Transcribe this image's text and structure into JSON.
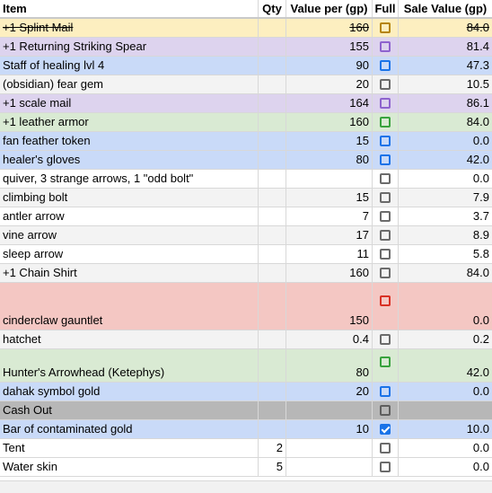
{
  "headers": {
    "item": "Item",
    "qty": "Qty",
    "value": "Value per (gp)",
    "full": "Full",
    "sale": "Sale Value (gp)"
  },
  "rows": [
    {
      "item": "+1 Splint Mail",
      "qty": "",
      "value": "160",
      "sale": "84.0",
      "bg": "#fdefc0",
      "cb": "#b58407",
      "checked": false,
      "strike": true
    },
    {
      "item": "+1 Returning Striking Spear",
      "qty": "",
      "value": "155",
      "sale": "81.4",
      "bg": "#ddd3ee",
      "cb": "#8e63ce",
      "checked": false
    },
    {
      "item": "Staff of healing lvl 4",
      "qty": "",
      "value": "90",
      "sale": "47.3",
      "bg": "#c9daf8",
      "cb": "#1a73e8",
      "checked": false
    },
    {
      "item": "(obsidian) fear gem",
      "qty": "",
      "value": "20",
      "sale": "10.5",
      "bg": "#f3f3f3",
      "cb": "#6b6b6b",
      "checked": false
    },
    {
      "item": "+1 scale mail",
      "qty": "",
      "value": "164",
      "sale": "86.1",
      "bg": "#ddd3ee",
      "cb": "#8e63ce",
      "checked": false
    },
    {
      "item": "+1 leather armor",
      "qty": "",
      "value": "160",
      "sale": "84.0",
      "bg": "#d9ead3",
      "cb": "#38a33d",
      "checked": false
    },
    {
      "item": "fan feather token",
      "qty": "",
      "value": "15",
      "sale": "0.0",
      "bg": "#c9daf8",
      "cb": "#1a73e8",
      "checked": false
    },
    {
      "item": "healer's gloves",
      "qty": "",
      "value": "80",
      "sale": "42.0",
      "bg": "#c9daf8",
      "cb": "#1a73e8",
      "checked": false
    },
    {
      "item": "quiver, 3 strange arrows, 1 \"odd bolt\"",
      "qty": "",
      "value": "",
      "sale": "0.0",
      "bg": "#ffffff",
      "cb": "#6b6b6b",
      "checked": false
    },
    {
      "item": "climbing bolt",
      "qty": "",
      "value": "15",
      "sale": "7.9",
      "bg": "#f3f3f3",
      "cb": "#6b6b6b",
      "checked": false
    },
    {
      "item": "antler arrow",
      "qty": "",
      "value": "7",
      "sale": "3.7",
      "bg": "#ffffff",
      "cb": "#6b6b6b",
      "checked": false
    },
    {
      "item": "vine arrow",
      "qty": "",
      "value": "17",
      "sale": "8.9",
      "bg": "#f3f3f3",
      "cb": "#6b6b6b",
      "checked": false
    },
    {
      "item": "sleep arrow",
      "qty": "",
      "value": "11",
      "sale": "5.8",
      "bg": "#ffffff",
      "cb": "#6b6b6b",
      "checked": false
    },
    {
      "item": "+1 Chain Shirt",
      "qty": "",
      "value": "160",
      "sale": "84.0",
      "bg": "#f3f3f3",
      "cb": "#6b6b6b",
      "checked": false
    },
    {
      "item": "cinderclaw gauntlet",
      "qty": "",
      "value": "150",
      "sale": "0.0",
      "bg": "#f4c7c3",
      "cb": "#d93025",
      "checked": false,
      "height": "tall"
    },
    {
      "item": "hatchet",
      "qty": "",
      "value": "0.4",
      "sale": "0.2",
      "bg": "#f3f3f3",
      "cb": "#6b6b6b",
      "checked": false
    },
    {
      "item": "Hunter's Arrowhead (Ketephys)",
      "qty": "",
      "value": "80",
      "sale": "42.0",
      "bg": "#d9ead3",
      "cb": "#38a33d",
      "checked": false,
      "height": "tall2"
    },
    {
      "item": "dahak symbol gold",
      "qty": "",
      "value": "20",
      "sale": "0.0",
      "bg": "#c9daf8",
      "cb": "#1a73e8",
      "checked": false
    },
    {
      "item": "Cash Out",
      "qty": "",
      "value": "",
      "sale": "",
      "bg": "#b7b7b7",
      "cb": "#5f5f5f",
      "checked": false
    },
    {
      "item": "Bar of contaminated gold",
      "qty": "",
      "value": "10",
      "sale": "10.0",
      "bg": "#c9daf8",
      "cb": "#1a73e8",
      "checked": true
    },
    {
      "item": "Tent",
      "qty": "2",
      "value": "",
      "sale": "0.0",
      "bg": "#ffffff",
      "cb": "#6b6b6b",
      "checked": false
    },
    {
      "item": "Water skin",
      "qty": "5",
      "value": "",
      "sale": "0.0",
      "bg": "#ffffff",
      "cb": "#6b6b6b",
      "checked": false
    }
  ]
}
